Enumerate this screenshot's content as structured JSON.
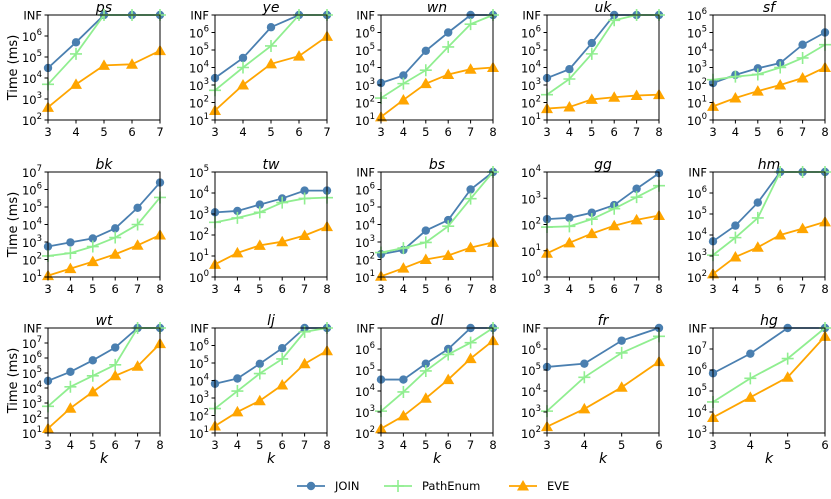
{
  "chart_data": {
    "type": "line",
    "yscale": "log",
    "ylabel": "Time (ms)",
    "xlabel": "k",
    "legend": {
      "placement": "bottom-center",
      "entries": [
        {
          "name": "JOIN",
          "color": "#4a7fb0",
          "marker": "circle"
        },
        {
          "name": "PathEnum",
          "color": "#90ee90",
          "marker": "plus"
        },
        {
          "name": "EVE",
          "color": "#ffa500",
          "marker": "triangle"
        }
      ]
    },
    "inf_label": "INF",
    "panels": [
      {
        "title": "ps",
        "x": [
          3,
          4,
          5,
          6,
          7
        ],
        "yticks": [
          "10^2",
          "10^3",
          "10^4",
          "10^5",
          "10^6",
          "INF"
        ],
        "ylim_exp": [
          2,
          7
        ],
        "inf_exp": 7,
        "series": {
          "JOIN": [
            30000.0,
            500000.0,
            "INF",
            "INF",
            "INF"
          ],
          "PathEnum": [
            5000.0,
            140000.0,
            "INF",
            "INF",
            "INF"
          ],
          "EVE": [
            400,
            5000.0,
            40000.0,
            45000.0,
            200000.0
          ]
        }
      },
      {
        "title": "ye",
        "x": [
          3,
          4,
          5,
          6,
          7
        ],
        "yticks": [
          "10^1",
          "10^2",
          "10^3",
          "10^4",
          "10^5",
          "10^6",
          "INF"
        ],
        "ylim_exp": [
          1,
          7
        ],
        "inf_exp": 7,
        "series": {
          "JOIN": [
            2500.0,
            35000.0,
            2000000.0,
            "INF",
            "INF"
          ],
          "PathEnum": [
            500,
            10000.0,
            170000.0,
            "INF",
            "INF"
          ],
          "EVE": [
            35,
            1000.0,
            16000.0,
            45000.0,
            600000.0
          ]
        }
      },
      {
        "title": "wn",
        "x": [
          3,
          4,
          5,
          6,
          7,
          8
        ],
        "yticks": [
          "10^1",
          "10^2",
          "10^3",
          "10^4",
          "10^5",
          "10^6",
          "INF"
        ],
        "ylim_exp": [
          1,
          7
        ],
        "inf_exp": 7,
        "series": {
          "JOIN": [
            1300.0,
            3500.0,
            90000.0,
            1000000.0,
            "INF",
            "INF"
          ],
          "PathEnum": [
            180,
            1200.0,
            7000.0,
            150000.0,
            3000000.0,
            "INF"
          ],
          "EVE": [
            15,
            140,
            1200.0,
            4000.0,
            8000.0,
            10000.0
          ]
        }
      },
      {
        "title": "uk",
        "x": [
          3,
          4,
          5,
          6,
          7,
          8
        ],
        "yticks": [
          "10^1",
          "10^2",
          "10^3",
          "10^4",
          "10^5",
          "10^6",
          "INF"
        ],
        "ylim_exp": [
          1,
          7
        ],
        "inf_exp": 7,
        "series": {
          "JOIN": [
            2500.0,
            8000.0,
            250000.0,
            "INF",
            "INF",
            "INF"
          ],
          "PathEnum": [
            280,
            2200.0,
            60000.0,
            5000000.0,
            "INF",
            "INF"
          ],
          "EVE": [
            45,
            55,
            150,
            200,
            250,
            280
          ]
        }
      },
      {
        "title": "sf",
        "x": [
          3,
          4,
          5,
          6,
          7,
          8
        ],
        "yticks": [
          "10^0",
          "10^1",
          "10^2",
          "10^3",
          "10^4",
          "10^5",
          "10^6"
        ],
        "ylim_exp": [
          0,
          6
        ],
        "inf_exp": null,
        "series": {
          "JOIN": [
            130,
            380,
            900,
            1800.0,
            20000.0,
            100000.0
          ],
          "PathEnum": [
            200,
            300,
            400,
            1000.0,
            3500.0,
            20000.0
          ],
          "EVE": [
            6,
            18,
            45,
            100,
            250,
            1000.0
          ]
        }
      },
      {
        "title": "bk",
        "x": [
          3,
          4,
          5,
          6,
          7,
          8
        ],
        "yticks": [
          "10^1",
          "10^2",
          "10^3",
          "10^4",
          "10^5",
          "10^6",
          "10^7"
        ],
        "ylim_exp": [
          1,
          7
        ],
        "inf_exp": null,
        "series": {
          "JOIN": [
            550,
            950,
            1600.0,
            6000.0,
            90000.0,
            2500000.0
          ],
          "PathEnum": [
            160,
            230,
            550,
            1800.0,
            10000.0,
            350000.0
          ],
          "EVE": [
            12,
            30,
            75,
            200,
            650,
            2500.0
          ]
        }
      },
      {
        "title": "tw",
        "x": [
          3,
          4,
          5,
          6,
          7,
          8
        ],
        "yticks": [
          "10^0",
          "10^1",
          "10^2",
          "10^3",
          "10^4",
          "10^5"
        ],
        "ylim_exp": [
          0,
          5
        ],
        "inf_exp": null,
        "series": {
          "JOIN": [
            1200.0,
            1400.0,
            2800.0,
            5500.0,
            13000.0,
            13000.0
          ],
          "PathEnum": [
            400,
            650,
            1200.0,
            3500.0,
            5500.0,
            6000.0
          ],
          "EVE": [
            4,
            14,
            32,
            48,
            95,
            250
          ]
        }
      },
      {
        "title": "bs",
        "x": [
          3,
          4,
          5,
          6,
          7,
          8
        ],
        "yticks": [
          "10^1",
          "10^2",
          "10^3",
          "10^4",
          "10^5",
          "10^6",
          "INF"
        ],
        "ylim_exp": [
          1,
          7
        ],
        "inf_exp": 7,
        "series": {
          "JOIN": [
            200,
            350,
            4500.0,
            18000.0,
            1000000.0,
            "INF"
          ],
          "PathEnum": [
            250,
            450,
            950,
            8000.0,
            300000.0,
            "INF"
          ],
          "EVE": [
            11,
            32,
            100,
            170,
            480,
            950
          ]
        }
      },
      {
        "title": "gg",
        "x": [
          3,
          4,
          5,
          6,
          7,
          8
        ],
        "yticks": [
          "10^0",
          "10^1",
          "10^2",
          "10^3",
          "10^4"
        ],
        "ylim_exp": [
          0,
          4
        ],
        "inf_exp": null,
        "series": {
          "JOIN": [
            160,
            180,
            280,
            550,
            2300.0,
            9000.0
          ],
          "PathEnum": [
            80,
            85,
            160,
            400,
            1100.0,
            3000.0
          ],
          "EVE": [
            8,
            20,
            45,
            90,
            150,
            220
          ]
        }
      },
      {
        "title": "hm",
        "x": [
          3,
          4,
          5,
          6,
          7,
          8
        ],
        "yticks": [
          "10^2",
          "10^3",
          "10^4",
          "10^5",
          "10^6",
          "INF"
        ],
        "ylim_exp": [
          2,
          7
        ],
        "inf_exp": 7,
        "series": {
          "JOIN": [
            5000.0,
            28000.0,
            350000.0,
            "INF",
            "INF",
            "INF"
          ],
          "PathEnum": [
            1100.0,
            7500.0,
            65000.0,
            "INF",
            "INF",
            "INF"
          ],
          "EVE": [
            140,
            900,
            2600.0,
            10000.0,
            20000.0,
            42000.0
          ]
        }
      },
      {
        "title": "wt",
        "x": [
          3,
          4,
          5,
          6,
          7,
          8
        ],
        "yticks": [
          "10^1",
          "10^2",
          "10^3",
          "10^4",
          "10^5",
          "10^6",
          "10^7",
          "INF"
        ],
        "ylim_exp": [
          1,
          8
        ],
        "inf_exp": 8,
        "series": {
          "JOIN": [
            30000.0,
            120000.0,
            700000.0,
            5000000.0,
            "INF",
            "INF"
          ],
          "PathEnum": [
            600,
            12000.0,
            65000.0,
            350000.0,
            "INF",
            "INF"
          ],
          "EVE": [
            20,
            450,
            5500.0,
            65000.0,
            280000.0,
            9000000.0
          ]
        }
      },
      {
        "title": "lj",
        "x": [
          3,
          4,
          5,
          6,
          7,
          8
        ],
        "yticks": [
          "10^1",
          "10^2",
          "10^3",
          "10^4",
          "10^5",
          "10^6",
          "INF"
        ],
        "ylim_exp": [
          1,
          7
        ],
        "inf_exp": 7,
        "series": {
          "JOIN": [
            6500.0,
            13000.0,
            90000.0,
            700000.0,
            "INF",
            "INF"
          ],
          "PathEnum": [
            250,
            2500.0,
            25000.0,
            170000.0,
            6000000.0,
            "INF"
          ],
          "EVE": [
            25,
            160,
            700,
            5500.0,
            90000.0,
            500000.0
          ]
        }
      },
      {
        "title": "dl",
        "x": [
          3,
          4,
          5,
          6,
          7,
          8
        ],
        "yticks": [
          "10^2",
          "10^3",
          "10^4",
          "10^5",
          "10^6",
          "INF"
        ],
        "ylim_exp": [
          2,
          7
        ],
        "inf_exp": 7,
        "series": {
          "JOIN": [
            35000.0,
            35000.0,
            200000.0,
            1000000.0,
            "INF",
            "INF"
          ],
          "PathEnum": [
            1100.0,
            9000.0,
            90000.0,
            550000.0,
            2000000.0,
            "INF"
          ],
          "EVE": [
            160,
            650,
            4500.0,
            35000.0,
            350000.0,
            2500000.0
          ]
        }
      },
      {
        "title": "fr",
        "x": [
          3,
          4,
          5,
          6
        ],
        "yticks": [
          "10^2",
          "10^3",
          "10^4",
          "10^5",
          "10^6",
          "INF"
        ],
        "ylim_exp": [
          2,
          7
        ],
        "inf_exp": 7,
        "series": {
          "JOIN": [
            140000.0,
            200000.0,
            2500000.0,
            "INF"
          ],
          "PathEnum": [
            1100.0,
            45000.0,
            650000.0,
            4000000.0
          ],
          "EVE": [
            200,
            1400.0,
            15000.0,
            250000.0
          ]
        }
      },
      {
        "title": "hg",
        "x": [
          3,
          4,
          5,
          6
        ],
        "yticks": [
          "10^3",
          "10^4",
          "10^5",
          "10^6",
          "10^7",
          "INF"
        ],
        "ylim_exp": [
          3,
          8
        ],
        "inf_exp": 8,
        "series": {
          "JOIN": [
            700000.0,
            6000000.0,
            "INF",
            "INF"
          ],
          "PathEnum": [
            30000.0,
            400000.0,
            3500000.0,
            "INF"
          ],
          "EVE": [
            5500.0,
            50000.0,
            450000.0,
            40000000.0
          ]
        }
      }
    ]
  }
}
